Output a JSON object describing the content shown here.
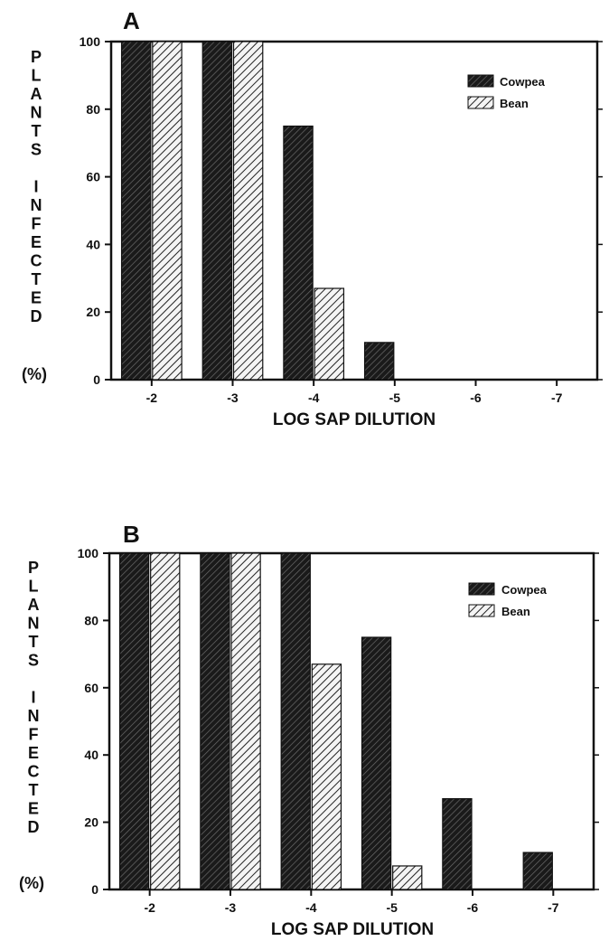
{
  "chart_data": [
    {
      "type": "bar",
      "panel": "A",
      "categories": [
        "-2",
        "-3",
        "-4",
        "-5",
        "-6",
        "-7"
      ],
      "series": [
        {
          "name": "Cowpea",
          "values": [
            100,
            100,
            75,
            11,
            0,
            0
          ]
        },
        {
          "name": "Bean",
          "values": [
            100,
            100,
            27,
            0,
            0,
            0
          ]
        }
      ],
      "yticks": [
        "0",
        "20",
        "40",
        "60",
        "80",
        "100"
      ],
      "ylim": [
        0,
        100
      ],
      "xlabel": "LOG SAP DILUTION",
      "ylabel_letters": [
        "P",
        "L",
        "A",
        "N",
        "T",
        "S",
        "",
        "I",
        "N",
        "F",
        "E",
        "C",
        "T",
        "E",
        "D"
      ],
      "ylabel_unit": "(%)",
      "legend_position": "top-right",
      "grid": false
    },
    {
      "type": "bar",
      "panel": "B",
      "categories": [
        "-2",
        "-3",
        "-4",
        "-5",
        "-6",
        "-7"
      ],
      "series": [
        {
          "name": "Cowpea",
          "values": [
            100,
            100,
            100,
            75,
            27,
            11
          ]
        },
        {
          "name": "Bean",
          "values": [
            100,
            100,
            67,
            7,
            0,
            0
          ]
        }
      ],
      "yticks": [
        "0",
        "20",
        "40",
        "60",
        "80",
        "100"
      ],
      "ylim": [
        0,
        100
      ],
      "xlabel": "LOG SAP DILUTION",
      "ylabel_letters": [
        "P",
        "L",
        "A",
        "N",
        "T",
        "S",
        "",
        "I",
        "N",
        "F",
        "E",
        "C",
        "T",
        "E",
        "D"
      ],
      "ylabel_unit": "(%)",
      "legend_position": "top-right",
      "grid": false
    }
  ],
  "colors": {
    "cowpea_fill": "#2a2a2a",
    "bean_fill": "#cfcfcf",
    "stroke": "#111111"
  }
}
